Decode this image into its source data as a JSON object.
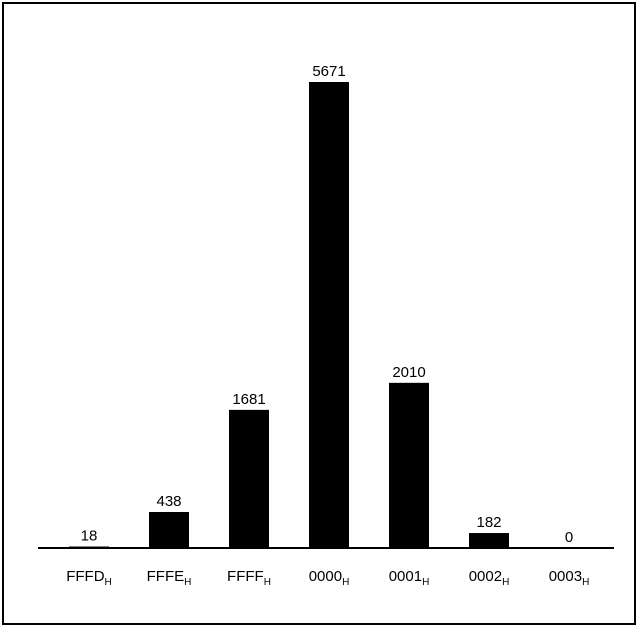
{
  "chart_data": {
    "type": "bar",
    "title": "",
    "xlabel": "",
    "ylabel": "",
    "categories": [
      "FFFD",
      "FFFE",
      "FFFF",
      "0000",
      "0001",
      "0002",
      "0003"
    ],
    "category_subscript": "H",
    "values": [
      18,
      438,
      1681,
      5671,
      2010,
      182,
      0
    ],
    "ylim": [
      0,
      5671
    ],
    "grid": false,
    "legend": "none",
    "bar_color": "#000000",
    "axis_color": "#000000",
    "background": "#ffffff"
  }
}
